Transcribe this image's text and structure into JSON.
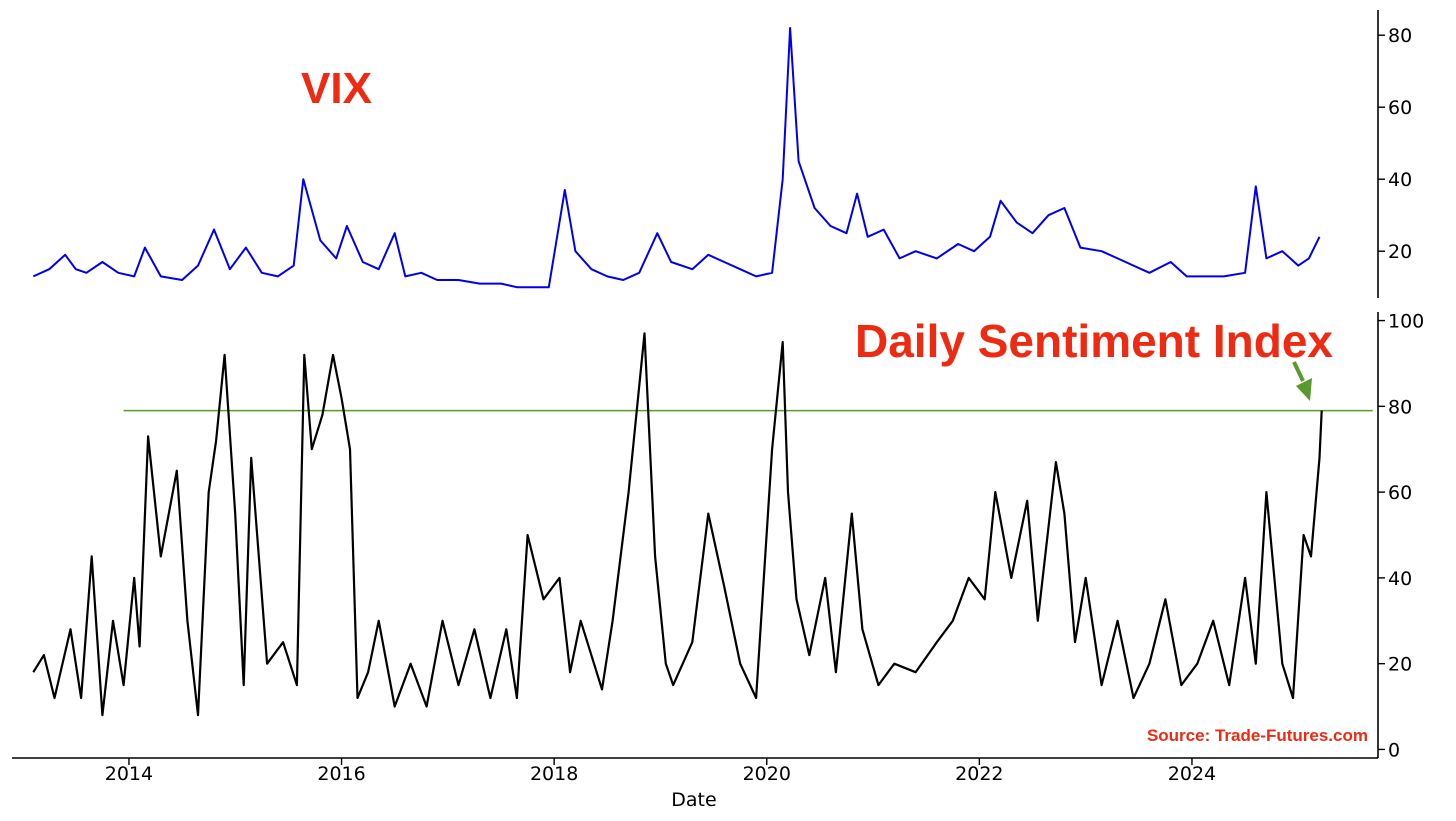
{
  "chart_data": [
    {
      "type": "line",
      "title": "VIX",
      "xlabel": "",
      "ylabel": "",
      "xlim": [
        2012.9,
        2025.75
      ],
      "ylim": [
        7,
        87
      ],
      "yticks": [
        20,
        40,
        60,
        80
      ],
      "y_axis_side": "right",
      "grid": false,
      "colors": {
        "line": "#0000ee",
        "title": "#ee2a12"
      },
      "series": [
        {
          "x": [
            2013.1,
            2013.25,
            2013.4,
            2013.5,
            2013.6,
            2013.75,
            2013.9,
            2014.05,
            2014.15,
            2014.3,
            2014.5,
            2014.65,
            2014.8,
            2014.95,
            2015.1,
            2015.25,
            2015.4,
            2015.55,
            2015.64,
            2015.8,
            2015.95,
            2016.05,
            2016.2,
            2016.35,
            2016.5,
            2016.6,
            2016.75,
            2016.9,
            2017.1,
            2017.3,
            2017.5,
            2017.65,
            2017.8,
            2017.95,
            2018.1,
            2018.2,
            2018.35,
            2018.5,
            2018.65,
            2018.8,
            2018.97,
            2019.1,
            2019.3,
            2019.45,
            2019.6,
            2019.75,
            2019.9,
            2020.05,
            2020.15,
            2020.22,
            2020.3,
            2020.45,
            2020.6,
            2020.75,
            2020.85,
            2020.95,
            2021.1,
            2021.25,
            2021.4,
            2021.6,
            2021.8,
            2021.95,
            2022.1,
            2022.2,
            2022.35,
            2022.5,
            2022.65,
            2022.8,
            2022.95,
            2023.15,
            2023.3,
            2023.45,
            2023.6,
            2023.8,
            2023.95,
            2024.1,
            2024.3,
            2024.5,
            2024.6,
            2024.7,
            2024.85,
            2025.0,
            2025.1,
            2025.2
          ],
          "y": [
            13,
            15,
            19,
            15,
            14,
            17,
            14,
            13,
            21,
            13,
            12,
            16,
            26,
            15,
            21,
            14,
            13,
            16,
            40,
            23,
            18,
            27,
            17,
            15,
            25,
            13,
            14,
            12,
            12,
            11,
            11,
            10,
            10,
            10,
            37,
            20,
            15,
            13,
            12,
            14,
            25,
            17,
            15,
            19,
            17,
            15,
            13,
            14,
            40,
            82,
            45,
            32,
            27,
            25,
            36,
            24,
            26,
            18,
            20,
            18,
            22,
            20,
            24,
            34,
            28,
            25,
            30,
            32,
            21,
            20,
            18,
            16,
            14,
            17,
            13,
            13,
            13,
            14,
            38,
            18,
            20,
            16,
            18,
            24
          ]
        }
      ]
    },
    {
      "type": "line",
      "title": "Daily Sentiment Index",
      "xlabel": "Date",
      "ylabel": "",
      "xlim": [
        2012.9,
        2025.75
      ],
      "ylim": [
        -2,
        102
      ],
      "yticks": [
        0,
        20,
        40,
        60,
        80,
        100
      ],
      "xticks": [
        "2014",
        "2016",
        "2018",
        "2020",
        "2022",
        "2024"
      ],
      "xtick_values": [
        2014,
        2016,
        2018,
        2020,
        2022,
        2024
      ],
      "y_axis_side": "right",
      "grid": false,
      "reference_line": {
        "y": 79,
        "x_start": 2013.95,
        "x_end": 2025.7,
        "color": "#5a9a2c"
      },
      "arrow": {
        "color": "#5a9a2c"
      },
      "colors": {
        "line": "#000000",
        "title": "#ee2a12",
        "source": "#ee2a12"
      },
      "source": "Source: Trade-Futures.com",
      "series": [
        {
          "x": [
            2013.1,
            2013.2,
            2013.3,
            2013.45,
            2013.55,
            2013.65,
            2013.75,
            2013.85,
            2013.95,
            2014.05,
            2014.1,
            2014.18,
            2014.3,
            2014.45,
            2014.55,
            2014.65,
            2014.75,
            2014.82,
            2014.9,
            2015.0,
            2015.08,
            2015.15,
            2015.3,
            2015.45,
            2015.58,
            2015.65,
            2015.72,
            2015.82,
            2015.92,
            2016.0,
            2016.08,
            2016.15,
            2016.25,
            2016.35,
            2016.5,
            2016.65,
            2016.8,
            2016.95,
            2017.1,
            2017.25,
            2017.4,
            2017.55,
            2017.65,
            2017.75,
            2017.9,
            2018.05,
            2018.15,
            2018.25,
            2018.45,
            2018.55,
            2018.7,
            2018.85,
            2018.95,
            2019.05,
            2019.12,
            2019.3,
            2019.45,
            2019.6,
            2019.75,
            2019.9,
            2020.05,
            2020.15,
            2020.2,
            2020.28,
            2020.4,
            2020.55,
            2020.65,
            2020.8,
            2020.9,
            2021.05,
            2021.2,
            2021.4,
            2021.6,
            2021.75,
            2021.9,
            2022.05,
            2022.15,
            2022.3,
            2022.45,
            2022.55,
            2022.72,
            2022.8,
            2022.9,
            2023.0,
            2023.15,
            2023.3,
            2023.45,
            2023.6,
            2023.75,
            2023.9,
            2024.05,
            2024.2,
            2024.35,
            2024.5,
            2024.6,
            2024.7,
            2024.85,
            2024.95,
            2025.05,
            2025.12,
            2025.2,
            2025.22
          ],
          "y": [
            18,
            22,
            12,
            28,
            12,
            45,
            8,
            30,
            15,
            40,
            24,
            73,
            45,
            65,
            30,
            8,
            60,
            72,
            92,
            55,
            15,
            68,
            20,
            25,
            15,
            92,
            70,
            78,
            92,
            82,
            70,
            12,
            18,
            30,
            10,
            20,
            10,
            30,
            15,
            28,
            12,
            28,
            12,
            50,
            35,
            40,
            18,
            30,
            14,
            30,
            60,
            97,
            45,
            20,
            15,
            25,
            55,
            38,
            20,
            12,
            70,
            95,
            60,
            35,
            22,
            40,
            18,
            55,
            28,
            15,
            20,
            18,
            25,
            30,
            40,
            35,
            60,
            40,
            58,
            30,
            67,
            55,
            25,
            40,
            15,
            30,
            12,
            20,
            35,
            15,
            20,
            30,
            15,
            40,
            20,
            60,
            20,
            12,
            50,
            45,
            68,
            79
          ]
        }
      ]
    }
  ]
}
